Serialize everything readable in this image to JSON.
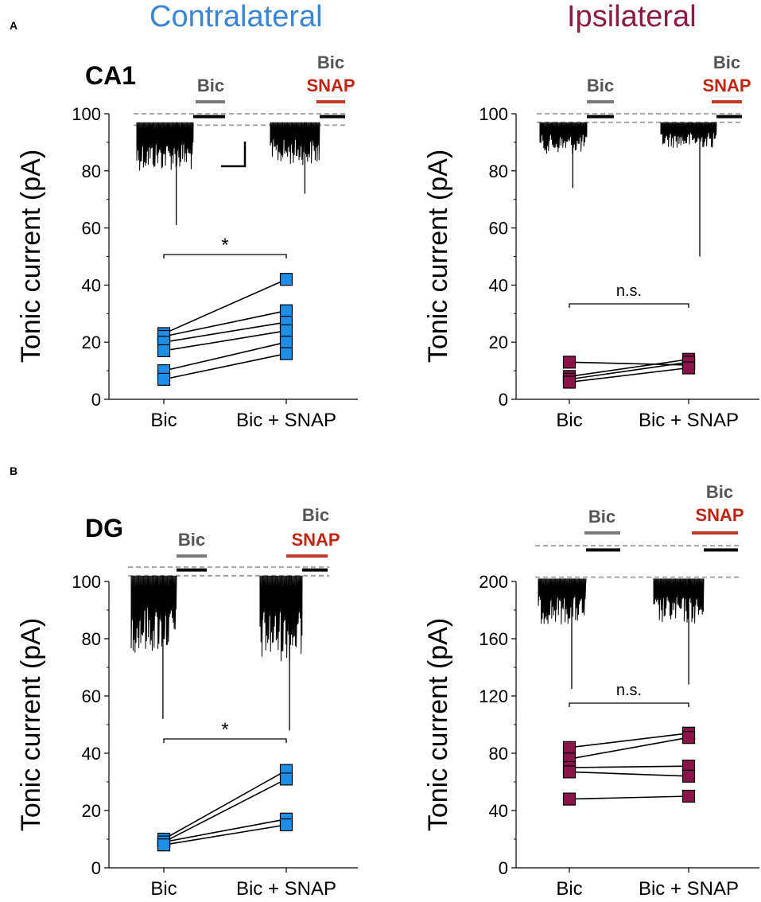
{
  "colors": {
    "contralateral": "#3a85d6",
    "ipsilateral": "#8c1a47",
    "contra_marker": "#1e8fe6",
    "ipsi_marker": "#8a1448",
    "bic_bar": "#7a7a7a",
    "snap_bar": "#c0392b",
    "snap_text": "#c0250f",
    "bic_text": "#555555",
    "trace": "#000000",
    "dash": "#9a9a9a"
  },
  "figure": {
    "col_titles": [
      "Contralateral",
      "Ipsilateral"
    ],
    "panel_labels": [
      "A",
      "B"
    ],
    "row_labels": [
      "CA1",
      "DG"
    ]
  },
  "chart_data": [
    {
      "type": "scatter",
      "id": "ca1-contra",
      "region": "CA1",
      "side": "Contralateral",
      "ylabel": "Tonic current (pA)",
      "ylim": [
        0,
        100
      ],
      "yticks": [
        0,
        20,
        40,
        60,
        80,
        100
      ],
      "categories": [
        "Bic",
        "Bic + SNAP"
      ],
      "pairs": [
        [
          23,
          42
        ],
        [
          22,
          31
        ],
        [
          20,
          27
        ],
        [
          17,
          24
        ],
        [
          10,
          20
        ],
        [
          7,
          16
        ]
      ],
      "significance": "*",
      "trace_labels": {
        "bic": "Bic",
        "snap": "SNAP"
      }
    },
    {
      "type": "scatter",
      "id": "ca1-ipsi",
      "region": "CA1",
      "side": "Ipsilateral",
      "ylabel": "Tonic current (pA)",
      "ylim": [
        0,
        100
      ],
      "yticks": [
        0,
        20,
        40,
        60,
        80,
        100
      ],
      "categories": [
        "Bic",
        "Bic + SNAP"
      ],
      "pairs": [
        [
          13,
          12
        ],
        [
          8,
          14
        ],
        [
          7,
          13
        ],
        [
          6,
          11
        ]
      ],
      "significance": "n.s.",
      "trace_labels": {
        "bic": "Bic",
        "snap": "SNAP"
      }
    },
    {
      "type": "scatter",
      "id": "dg-contra",
      "region": "DG",
      "side": "Contralateral",
      "ylabel": "Tonic current (pA)",
      "ylim": [
        0,
        100
      ],
      "yticks": [
        0,
        20,
        40,
        60,
        80,
        100
      ],
      "categories": [
        "Bic",
        "Bic + SNAP"
      ],
      "pairs": [
        [
          10,
          34
        ],
        [
          9,
          31
        ],
        [
          9,
          17
        ],
        [
          8,
          15
        ]
      ],
      "significance": "*",
      "trace_labels": {
        "bic": "Bic",
        "snap": "SNAP"
      }
    },
    {
      "type": "scatter",
      "id": "dg-ipsi",
      "region": "DG",
      "side": "Ipsilateral",
      "ylabel": "Tonic current (pA)",
      "ylim": [
        0,
        200
      ],
      "yticks": [
        0,
        40,
        80,
        120,
        160,
        200
      ],
      "categories": [
        "Bic",
        "Bic + SNAP"
      ],
      "pairs": [
        [
          84,
          94
        ],
        [
          76,
          91
        ],
        [
          70,
          71
        ],
        [
          67,
          64
        ],
        [
          48,
          50
        ]
      ],
      "significance": "n.s.",
      "trace_labels": {
        "bic": "Bic",
        "snap": "SNAP"
      }
    }
  ]
}
